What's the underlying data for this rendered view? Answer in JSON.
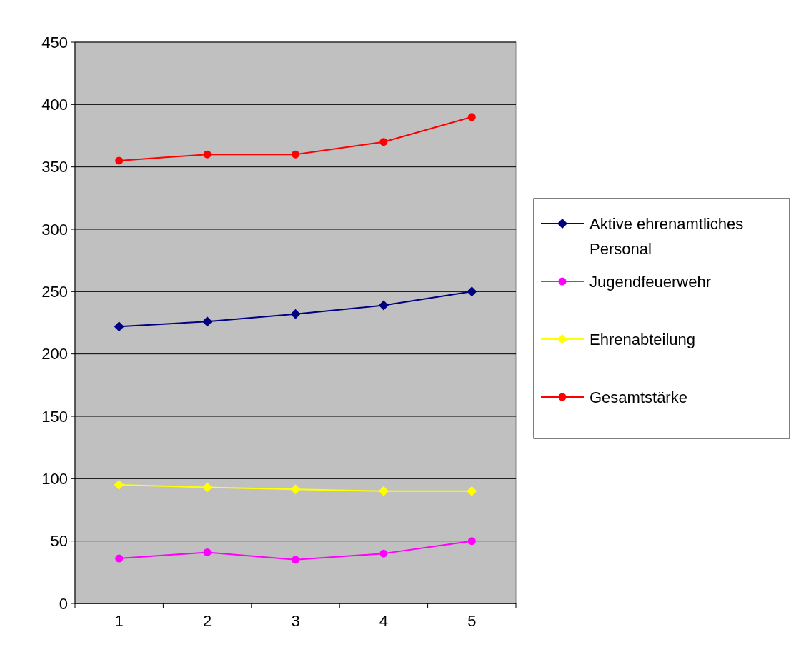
{
  "chart_data": {
    "type": "line",
    "categories": [
      "1",
      "2",
      "3",
      "4",
      "5"
    ],
    "series": [
      {
        "name": "Aktive ehrenamtliches Personal",
        "color": "#000080",
        "marker": "diamond",
        "values": [
          222,
          226,
          232,
          239,
          250
        ]
      },
      {
        "name": "Jugendfeuerwehr",
        "color": "#ff00ff",
        "marker": "circle",
        "values": [
          36,
          41,
          35,
          40,
          50
        ]
      },
      {
        "name": "Ehrenabteilung",
        "color": "#ffff00",
        "marker": "diamond",
        "values": [
          95,
          93,
          91.5,
          90,
          90
        ]
      },
      {
        "name": "Gesamtstärke",
        "color": "#ff0000",
        "marker": "circle",
        "values": [
          355,
          360,
          360,
          370,
          390
        ]
      }
    ],
    "ylim": [
      0,
      450
    ],
    "yticks": [
      0,
      50,
      100,
      150,
      200,
      250,
      300,
      350,
      400,
      450
    ],
    "grid": "y",
    "legend": "right"
  }
}
